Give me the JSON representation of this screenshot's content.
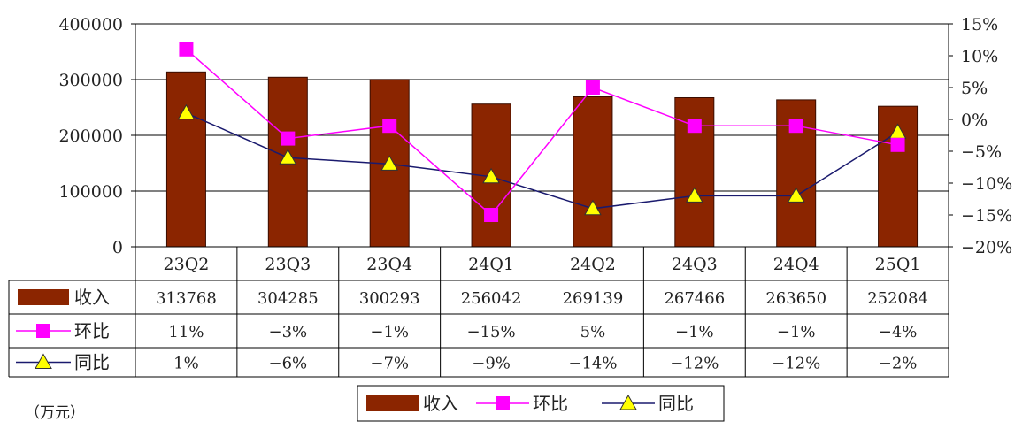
{
  "chart_data": {
    "type": "bar",
    "categories": [
      "23Q2",
      "23Q3",
      "23Q4",
      "24Q1",
      "24Q2",
      "24Q3",
      "24Q4",
      "25Q1"
    ],
    "series": [
      {
        "name": "收入",
        "type": "bar",
        "axis": "left",
        "color": "#8B2500",
        "values": [
          313768,
          304285,
          300293,
          256042,
          269139,
          267466,
          263650,
          252084
        ]
      },
      {
        "name": "环比",
        "type": "line",
        "axis": "right",
        "color": "#FF00FF",
        "marker": "square",
        "values": [
          11,
          -3,
          -1,
          -15,
          5,
          -1,
          -1,
          -4
        ]
      },
      {
        "name": "同比",
        "type": "line",
        "axis": "right",
        "color": "#1A1A6E",
        "marker": "triangle",
        "marker_color": "#FFFF00",
        "values": [
          1,
          -6,
          -7,
          -9,
          -14,
          -12,
          -12,
          -2
        ]
      }
    ],
    "table_values": {
      "收入": [
        "313768",
        "304285",
        "300293",
        "256042",
        "269139",
        "267466",
        "263650",
        "252084"
      ],
      "环比": [
        "11%",
        "−3%",
        "−1%",
        "−15%",
        "5%",
        "−1%",
        "−1%",
        "−4%"
      ],
      "同比": [
        "1%",
        "−6%",
        "−7%",
        "−9%",
        "−14%",
        "−12%",
        "−12%",
        "−2%"
      ]
    },
    "ylim_left": [
      0,
      400000
    ],
    "yticks_left": [
      "0",
      "100000",
      "200000",
      "300000",
      "400000"
    ],
    "ylim_right": [
      -20,
      15
    ],
    "yticks_right": [
      "−20%",
      "−15%",
      "−10%",
      "−5%",
      "0%",
      "5%",
      "10%",
      "15%"
    ],
    "unit_label": "（万元）",
    "grid": "horizontal",
    "legend": "bottom-center"
  }
}
